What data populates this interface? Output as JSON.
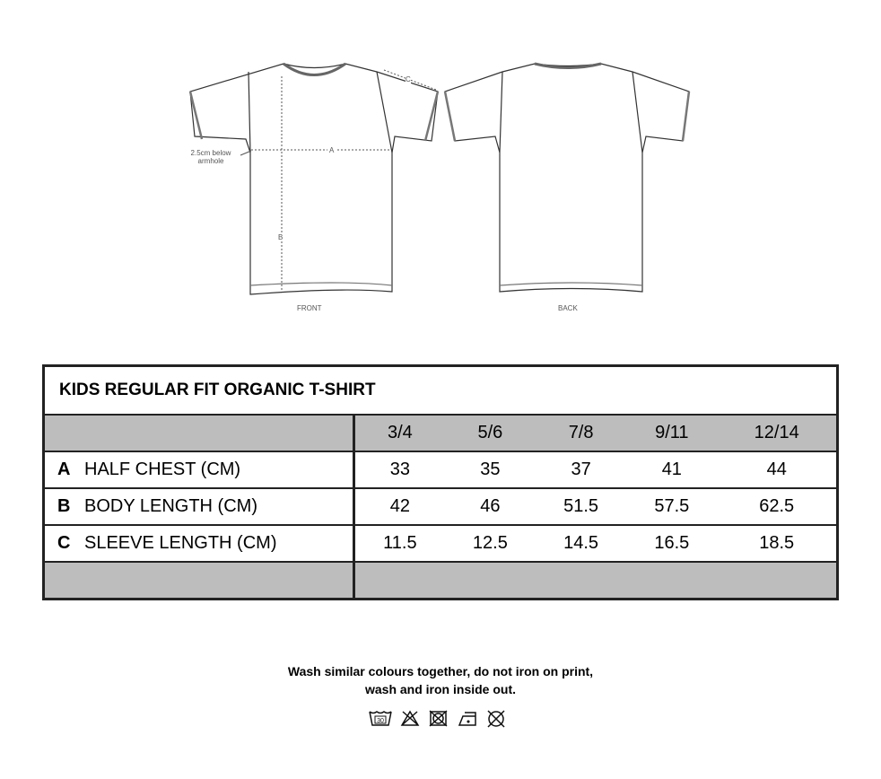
{
  "diagram": {
    "front_label": "FRONT",
    "back_label": "BACK",
    "armhole_note": "2.5cm below armhole",
    "markers": {
      "a": "A",
      "b": "B",
      "c": "C"
    }
  },
  "table": {
    "title": "KIDS REGULAR FIT ORGANIC T-SHIRT",
    "sizes": [
      "3/4",
      "5/6",
      "7/8",
      "9/11",
      "12/14"
    ],
    "rows": [
      {
        "letter": "A",
        "label": "HALF CHEST (CM)",
        "values": [
          "33",
          "35",
          "37",
          "41",
          "44"
        ]
      },
      {
        "letter": "B",
        "label": "BODY LENGTH (CM)",
        "values": [
          "42",
          "46",
          "51.5",
          "57.5",
          "62.5"
        ]
      },
      {
        "letter": "C",
        "label": "SLEEVE LENGTH (CM)",
        "values": [
          "11.5",
          "12.5",
          "14.5",
          "16.5",
          "18.5"
        ]
      }
    ]
  },
  "care": {
    "line1": "Wash similar colours together, do not iron on print,",
    "line2": "wash and iron inside out.",
    "icons": [
      "wash-30-icon",
      "do-not-bleach-icon",
      "do-not-tumble-dry-icon",
      "iron-low-icon",
      "do-not-dry-clean-icon"
    ],
    "wash_temp": "30"
  }
}
